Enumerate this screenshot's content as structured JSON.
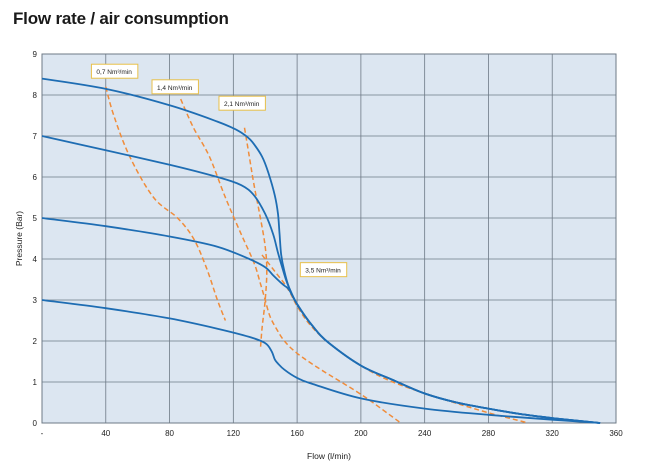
{
  "chart_data": {
    "type": "line",
    "title": "Flow rate / air consumption",
    "xlabel": "Flow (l/min)",
    "ylabel": "Pressure (Bar)",
    "xlim": [
      0,
      360
    ],
    "ylim": [
      0,
      9
    ],
    "x_ticks": [
      0,
      40,
      80,
      120,
      160,
      200,
      240,
      280,
      320,
      360
    ],
    "x_tick_labels": [
      "-",
      "40",
      "80",
      "120",
      "160",
      "200",
      "240",
      "280",
      "320",
      "360"
    ],
    "y_ticks": [
      0,
      1,
      2,
      3,
      4,
      5,
      6,
      7,
      8,
      9
    ],
    "y_tick_labels": [
      "0",
      "1",
      "2",
      "3",
      "4",
      "5",
      "6",
      "7",
      "8",
      "9"
    ],
    "grid": true,
    "colors": {
      "plot_background": "#dce6f1",
      "grid": "#6e7a86",
      "pressure_curve": "#1e6db3",
      "consumption_curve": "#f08c3a",
      "callout_border": "#e8c04a",
      "callout_fill": "#ffffff"
    },
    "series": [
      {
        "kind": "pressure",
        "x": [
          0,
          40,
          80,
          110,
          122,
          128,
          132,
          138,
          142,
          146,
          148,
          149,
          150,
          152,
          155,
          160,
          170,
          180,
          200,
          220,
          240,
          260,
          280,
          300,
          320,
          340,
          350
        ],
        "y": [
          8.4,
          8.15,
          7.75,
          7.35,
          7.15,
          7.0,
          6.85,
          6.5,
          6.1,
          5.55,
          5.1,
          4.6,
          4.1,
          3.7,
          3.3,
          2.9,
          2.35,
          1.95,
          1.4,
          1.05,
          0.72,
          0.5,
          0.35,
          0.22,
          0.12,
          0.04,
          0.0
        ]
      },
      {
        "kind": "pressure",
        "x": [
          0,
          40,
          80,
          110,
          125,
          133,
          140,
          145,
          148,
          151,
          153,
          155,
          160,
          170,
          180,
          200,
          220,
          240,
          260,
          280,
          300,
          320,
          340,
          350
        ],
        "y": [
          7.0,
          6.65,
          6.3,
          6.0,
          5.8,
          5.55,
          5.1,
          4.6,
          4.15,
          3.75,
          3.5,
          3.3,
          2.9,
          2.35,
          1.95,
          1.4,
          1.05,
          0.72,
          0.5,
          0.35,
          0.22,
          0.12,
          0.04,
          0.0
        ]
      },
      {
        "kind": "pressure",
        "x": [
          0,
          40,
          80,
          110,
          130,
          140,
          145,
          149,
          152,
          155,
          160,
          170,
          180,
          200,
          220,
          240,
          260,
          280,
          300,
          320,
          340,
          350
        ],
        "y": [
          5.0,
          4.8,
          4.55,
          4.3,
          4.0,
          3.8,
          3.6,
          3.45,
          3.35,
          3.25,
          2.9,
          2.35,
          1.95,
          1.4,
          1.05,
          0.72,
          0.5,
          0.35,
          0.22,
          0.12,
          0.04,
          0.0
        ]
      },
      {
        "kind": "pressure",
        "x": [
          0,
          40,
          80,
          110,
          130,
          140,
          144,
          146,
          148,
          152,
          160,
          170,
          200,
          240,
          280,
          320,
          350
        ],
        "y": [
          3.0,
          2.8,
          2.55,
          2.3,
          2.1,
          1.95,
          1.75,
          1.55,
          1.45,
          1.3,
          1.1,
          0.95,
          0.6,
          0.35,
          0.2,
          0.08,
          0.0
        ]
      },
      {
        "kind": "consumption",
        "name": "0,7 Nm³/min",
        "x": [
          40,
          45,
          55,
          70,
          85,
          95,
          103,
          110,
          115
        ],
        "y": [
          8.2,
          7.5,
          6.5,
          5.5,
          5.0,
          4.5,
          3.8,
          3.0,
          2.5
        ]
      },
      {
        "kind": "consumption",
        "name": "1,4 Nm³/min",
        "x": [
          87,
          95,
          105,
          115,
          125,
          133,
          137,
          140,
          143,
          147,
          152,
          160,
          175,
          200,
          218,
          225
        ],
        "y": [
          7.9,
          7.2,
          6.5,
          5.5,
          4.6,
          3.9,
          3.4,
          3.0,
          2.6,
          2.3,
          2.0,
          1.7,
          1.3,
          0.7,
          0.2,
          0.0
        ]
      },
      {
        "kind": "consumption",
        "name": "2,1 Nm³/min",
        "x": [
          127,
          130,
          133,
          137,
          140,
          141,
          140,
          138,
          137
        ],
        "y": [
          7.2,
          6.5,
          5.8,
          5.0,
          4.3,
          3.7,
          3.0,
          2.3,
          1.8
        ]
      },
      {
        "kind": "consumption",
        "name": "3,5 Nm³/min",
        "x": [
          138,
          142,
          147,
          152,
          156,
          160,
          168,
          180,
          200,
          220,
          250,
          280,
          300,
          305
        ],
        "y": [
          4.1,
          3.9,
          3.65,
          3.4,
          3.15,
          2.85,
          2.4,
          1.95,
          1.4,
          1.0,
          0.6,
          0.25,
          0.05,
          0.0
        ]
      }
    ],
    "annotations": [
      {
        "text": "0,7 Nm³/min",
        "x": 31,
        "y": 8.58,
        "points_to": "0,7 Nm³/min"
      },
      {
        "text": "1,4 Nm³/min",
        "x": 69,
        "y": 8.2,
        "points_to": "1,4 Nm³/min"
      },
      {
        "text": "2,1 Nm³/min",
        "x": 111,
        "y": 7.8,
        "points_to": "2,1 Nm³/min"
      },
      {
        "text": "3,5 Nm³/min",
        "x": 162,
        "y": 3.74,
        "points_to": "3,5 Nm³/min"
      }
    ]
  }
}
